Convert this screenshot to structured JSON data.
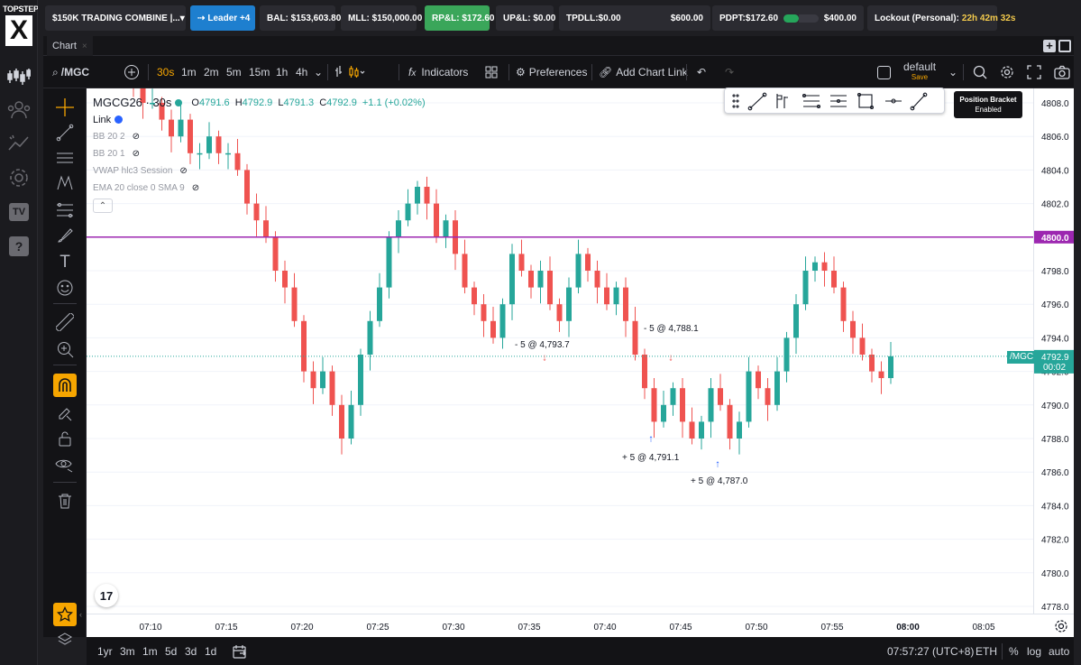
{
  "brand": {
    "top": "TOPSTEP",
    "mark": "X"
  },
  "topbar": {
    "account": "$150K TRADING COMBINE |...",
    "leader": "Leader +4",
    "bal": "BAL: $153,603.80",
    "mll": "MLL: $150,000.00",
    "rpl": "RP&L: $172.60",
    "upl": "UP&L: $0.00",
    "tpdll_label": "TPDLL:$0.00",
    "tpdll_limit": "$600.00",
    "tpdll_fraction": 0,
    "pdpt_label": "PDPT:$172.60",
    "pdpt_limit": "$400.00",
    "pdpt_fraction": 0.43,
    "lockout_label": "Lockout (Personal):",
    "lockout_time": "22h 42m 32s"
  },
  "tabstrip": {
    "tab": "Chart",
    "tab_close": "×"
  },
  "toolbar": {
    "symbol": "/MGC",
    "intervals": [
      "30s",
      "1m",
      "2m",
      "5m",
      "15m",
      "1h",
      "4h"
    ],
    "active_interval": "30s",
    "indicators": "Indicators",
    "preferences": "Preferences",
    "add_chart_link": "Add Chart Link",
    "layout_name": "default",
    "layout_save": "Save"
  },
  "legend": {
    "symbol": "MGCG26 · 30s",
    "o_label": "O",
    "o": "4791.6",
    "h_label": "H",
    "h": "4792.9",
    "l_label": "L",
    "l": "4791.3",
    "c_label": "C",
    "c": "4792.9",
    "change": "+1.1 (+0.02%)",
    "link": "Link",
    "indicators": [
      "BB 20 2",
      "BB 20 1",
      "VWAP hlc3 Session",
      "EMA 20 close 0 SMA 9"
    ]
  },
  "bracket": {
    "title": "Position Bracket",
    "status": "Enabled"
  },
  "price_axis": {
    "ticks": [
      "4808.0",
      "4806.0",
      "4804.0",
      "4802.0",
      "4800.0",
      "4798.0",
      "4796.0",
      "4794.0",
      "4792.0",
      "4790.0",
      "4788.0",
      "4786.0",
      "4784.0",
      "4782.0",
      "4780.0",
      "4778.0"
    ],
    "alert_price": "4800.0",
    "last_price": "4792.9",
    "countdown": "00:02",
    "symbol_tag": "/MGC"
  },
  "time_axis": {
    "ticks": [
      "07:10",
      "07:15",
      "07:20",
      "07:25",
      "07:30",
      "07:35",
      "07:40",
      "07:45",
      "07:50",
      "07:55",
      "08:00",
      "08:05"
    ]
  },
  "trades": [
    {
      "text": "- 5 @ 4,793.7",
      "side": "sell"
    },
    {
      "text": "- 5 @ 4,788.1",
      "side": "sell"
    },
    {
      "text": "+ 5 @ 4,791.1",
      "side": "buy"
    },
    {
      "text": "+ 5 @ 4,787.0",
      "side": "buy"
    }
  ],
  "bottombar": {
    "ranges": [
      "1yr",
      "3m",
      "1m",
      "5d",
      "3d",
      "1d"
    ],
    "clock": "07:57:27 (UTC+8)",
    "session": "ETH",
    "pct": "%",
    "log": "log",
    "auto": "auto"
  },
  "colors": {
    "up": "#26a69a",
    "down": "#ef5350",
    "alert": "#9c27b0",
    "accent": "#f7a600",
    "last": "#26a69a"
  },
  "chart_data": {
    "type": "candlestick",
    "interval": "30s",
    "ylim": [
      4777,
      4809
    ],
    "xlim": [
      "07:06",
      "08:08"
    ],
    "candles_close_approx": [
      4809,
      4808,
      4808,
      4807,
      4806,
      4807,
      4805,
      4805,
      4806,
      4805,
      4805,
      4804,
      4802,
      4801,
      4800,
      4798,
      4797,
      4795,
      4792,
      4791,
      4792,
      4790,
      4788,
      4790,
      4793,
      4795,
      4797,
      4800,
      4801,
      4802,
      4803,
      4802,
      4800,
      4801,
      4799,
      4797,
      4796,
      4795,
      4794,
      4796,
      4799,
      4798,
      4797,
      4798,
      4796,
      4795,
      4797,
      4799,
      4798,
      4797,
      4796,
      4797,
      4795,
      4793,
      4791,
      4789,
      4790,
      4791,
      4789,
      4788,
      4789,
      4791,
      4790,
      4788,
      4789,
      4792,
      4791,
      4790,
      4792,
      4794,
      4796,
      4798,
      4798.5,
      4798,
      4797,
      4795,
      4794,
      4793,
      4792,
      4791.6,
      4792.9
    ]
  }
}
